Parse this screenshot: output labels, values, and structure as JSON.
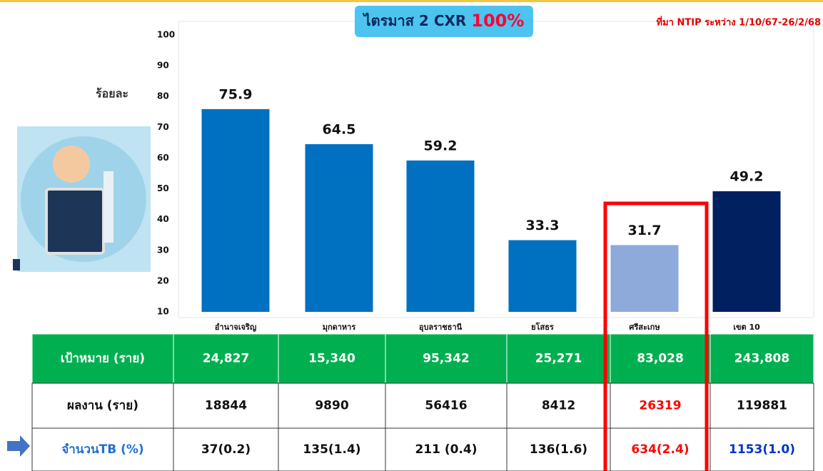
{
  "chart_data": {
    "type": "bar",
    "title": "ไตรมาส 2 CXR",
    "title_highlight": "100%",
    "source_note": "ที่มา NTIP ระหว่าง 1/10/67-26/2/68",
    "y_axis_label": "ร้อยละ",
    "categories": [
      "อำนาจเจริญ",
      "มุกดาหาร",
      "อุบลราชธานี",
      "ยโสธร",
      "ศรีสะเกษ",
      "เขต 10"
    ],
    "values": [
      75.9,
      64.5,
      59.2,
      33.3,
      31.7,
      49.2
    ],
    "colors": [
      "#0070c0",
      "#0070c0",
      "#0070c0",
      "#0070c0",
      "#8eaadb",
      "#002060"
    ],
    "ylim": [
      10,
      100
    ],
    "yticks": [
      10,
      20,
      30,
      40,
      50,
      60,
      70,
      80,
      90,
      100
    ]
  },
  "table": {
    "rows": [
      {
        "label": "เป้าหมาย (ราย)",
        "cells": [
          "24,827",
          "15,340",
          "95,342",
          "25,271",
          "83,028",
          "243,808"
        ]
      },
      {
        "label": "ผลงาน (ราย)",
        "cells": [
          "18844",
          "9890",
          "56416",
          "8412",
          "26319",
          "119881"
        ]
      },
      {
        "label": "จำนวนTB  (%)",
        "cells": [
          "37(0.2)",
          "135(1.4)",
          "211 (0.4)",
          "136(1.6)",
          "634(2.4)",
          "1153(1.0)"
        ]
      }
    ]
  }
}
